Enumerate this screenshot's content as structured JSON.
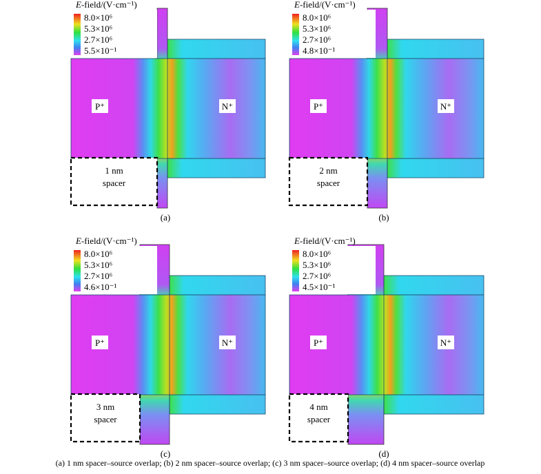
{
  "panels": [
    {
      "legend": {
        "title_var": "E",
        "title_rest": "-field/(V·cm⁻¹)",
        "labels": [
          "8.0×10⁶",
          "5.3×10⁶",
          "2.7×10⁶",
          "5.5×10⁻¹"
        ]
      },
      "p_label": "P⁺",
      "n_label": "N⁺",
      "spacer": [
        "1 nm",
        "spacer"
      ],
      "caption": "(a)"
    },
    {
      "legend": {
        "title_var": "E",
        "title_rest": "-field/(V·cm⁻¹)",
        "labels": [
          "8.0×10⁶",
          "5.3×10⁶",
          "2.7×10⁶",
          "4.8×10⁻¹"
        ]
      },
      "p_label": "P⁺",
      "n_label": "N⁺",
      "spacer": [
        "2 nm",
        "spacer"
      ],
      "caption": "(b)"
    },
    {
      "legend": {
        "title_var": "E",
        "title_rest": "-field/(V·cm⁻¹)",
        "labels": [
          "8.0×10⁶",
          "5.3×10⁶",
          "2.7×10⁶",
          "4.6×10⁻¹"
        ]
      },
      "p_label": "P⁺",
      "n_label": "N⁺",
      "spacer": [
        "3 nm",
        "spacer"
      ],
      "caption": "(c)"
    },
    {
      "legend": {
        "title_var": "E",
        "title_rest": "-field/(V·cm⁻¹)",
        "labels": [
          "8.0×10⁶",
          "5.3×10⁶",
          "2.7×10⁶",
          "4.5×10⁻¹"
        ]
      },
      "p_label": "P⁺",
      "n_label": "N⁺",
      "spacer": [
        "4 nm",
        "spacer"
      ],
      "caption": "(d)"
    }
  ],
  "caption": "(a) 1 nm spacer–source overlap; (b) 2 nm spacer–source overlap; (c) 3 nm spacer–source overlap; (d) 4 nm spacer–source overlap"
}
